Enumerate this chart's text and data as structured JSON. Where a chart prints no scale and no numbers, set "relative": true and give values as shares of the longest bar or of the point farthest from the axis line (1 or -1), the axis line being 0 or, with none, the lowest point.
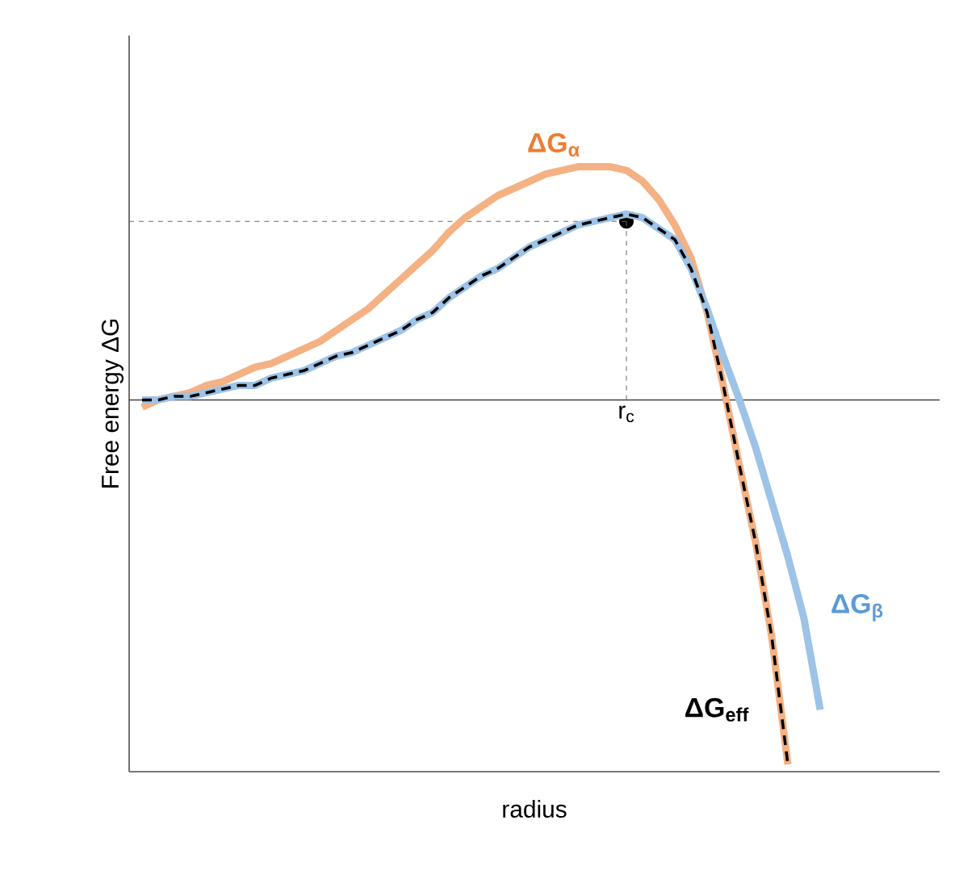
{
  "chart_data": {
    "type": "line",
    "relative": true,
    "xlabel": "radius",
    "ylabel": "Free energy  ΔG",
    "categories": [
      null,
      null,
      null,
      null,
      null,
      null,
      null,
      null,
      null,
      null,
      null,
      null,
      null,
      null,
      null,
      null,
      null,
      null,
      null,
      null,
      null,
      null,
      null,
      null,
      null,
      null,
      null,
      null,
      null,
      null,
      null,
      null,
      null,
      null,
      null,
      null,
      null,
      null,
      null,
      null,
      null,
      null,
      null
    ],
    "series": [
      {
        "name": "ΔG$_{α}$",
        "color": "#f4b183",
        "values": [
          -0.02,
          0.0,
          0.01,
          0.02,
          0.04,
          0.05,
          0.07,
          0.09,
          0.1,
          0.12,
          0.14,
          0.16,
          0.19,
          0.22,
          0.25,
          0.29,
          0.33,
          0.37,
          0.41,
          0.46,
          0.5,
          0.53,
          0.56,
          0.58,
          0.6,
          0.62,
          0.63,
          0.64,
          0.64,
          0.64,
          0.63,
          0.6,
          0.55,
          0.48,
          0.39,
          0.24,
          0.04,
          -0.18,
          -0.39,
          -0.65,
          -1.0,
          null,
          null
        ]
      },
      {
        "name": "ΔG$_{β}$",
        "color": "#9dc3e6",
        "values": [
          0.0,
          0.0,
          0.01,
          0.01,
          0.02,
          0.03,
          0.04,
          0.04,
          0.06,
          0.07,
          0.08,
          0.1,
          0.12,
          0.13,
          0.15,
          0.17,
          0.19,
          0.22,
          0.24,
          0.28,
          0.31,
          0.34,
          0.36,
          0.39,
          0.42,
          0.44,
          0.46,
          0.48,
          0.49,
          0.5,
          0.51,
          0.5,
          0.47,
          0.44,
          0.36,
          0.25,
          0.12,
          0.0,
          -0.13,
          -0.28,
          -0.43,
          -0.6,
          -0.85
        ]
      },
      {
        "name": "ΔG$_{eff}$",
        "color": "#000000",
        "line_style": "dashed",
        "values": [
          0.0,
          0.0,
          0.01,
          0.01,
          0.02,
          0.03,
          0.04,
          0.04,
          0.06,
          0.07,
          0.08,
          0.1,
          0.12,
          0.13,
          0.15,
          0.17,
          0.19,
          0.22,
          0.24,
          0.28,
          0.31,
          0.34,
          0.36,
          0.39,
          0.42,
          0.44,
          0.46,
          0.48,
          0.49,
          0.5,
          0.51,
          0.5,
          0.47,
          0.44,
          0.36,
          0.24,
          0.04,
          -0.18,
          -0.39,
          -0.65,
          -1.0,
          null,
          null
        ]
      }
    ],
    "annotations": [
      "r$_{c}$"
    ],
    "ref_lines": [
      {
        "axis": "y",
        "value": 0.49
      }
    ]
  }
}
